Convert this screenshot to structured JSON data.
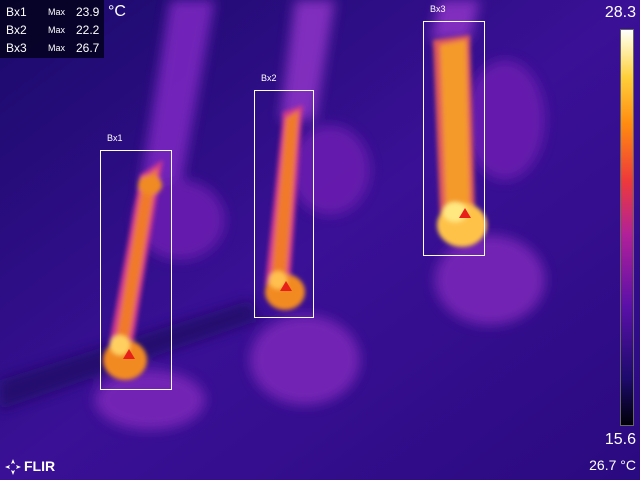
{
  "readout": {
    "rows": [
      {
        "box": "Bx1",
        "stat": "Max",
        "value": "23.9"
      },
      {
        "box": "Bx2",
        "stat": "Max",
        "value": "22.2"
      },
      {
        "box": "Bx3",
        "stat": "Max",
        "value": "26.7"
      }
    ],
    "unit": "°C"
  },
  "boxes": [
    {
      "label": "Bx1"
    },
    {
      "label": "Bx2"
    },
    {
      "label": "Bx3"
    }
  ],
  "scale": {
    "max": "28.3",
    "min": "15.6",
    "palette": "iron"
  },
  "logo": {
    "text": "FLIR",
    "icon": "flir-logo-icon"
  },
  "status": {
    "text": "26.7 °C"
  },
  "colors": {
    "hot": "#ffe070",
    "warm": "#f07818",
    "cool": "#6a1ab8",
    "background": "#1a0660"
  }
}
